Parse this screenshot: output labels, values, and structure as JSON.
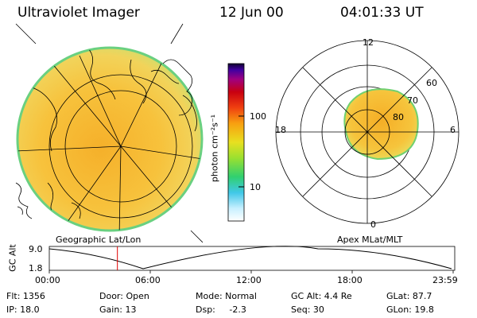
{
  "header": {
    "title": "Ultraviolet Imager",
    "date": "12 Jun 00",
    "time": "04:01:33 UT"
  },
  "colorbar": {
    "unit_label": "photon cm⁻²s⁻¹",
    "ticks": [
      "100",
      "10"
    ]
  },
  "polar": {
    "hour_labels": [
      "12",
      "18",
      "6",
      "0"
    ],
    "lat_labels": [
      "60",
      "70",
      "80"
    ]
  },
  "projections": {
    "left": "Geographic Lat/Lon",
    "right": "Apex MLat/MLT"
  },
  "altitude_plot": {
    "ylabel": "GC Alt",
    "yticks": [
      "9.0",
      "1.8"
    ],
    "xticks": [
      "00:00",
      "06:00",
      "12:00",
      "18:00",
      "23:59"
    ],
    "current_time_fraction": 0.168
  },
  "status": {
    "flt": "Flt: 1356",
    "door": "Door: Open",
    "mode": "Mode: Normal",
    "gcalt": "GC Alt: 4.4 Re",
    "glat": "GLat:  87.7",
    "ip": "IP: 18.0",
    "gain": "Gain: 13",
    "dsp": "Dsp:     -2.3",
    "seq": "Seq: 30",
    "glon": "GLon:  19.8"
  }
}
